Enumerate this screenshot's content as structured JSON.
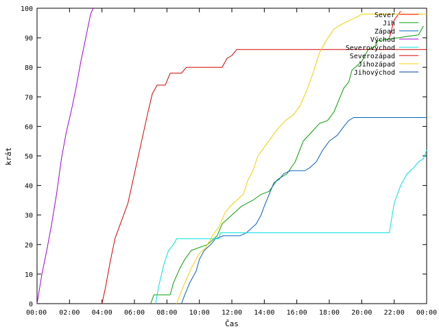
{
  "chart_data": {
    "type": "line",
    "title": "",
    "xlabel": "Čas",
    "ylabel": "krát",
    "xlim": [
      0,
      24
    ],
    "ylim": [
      0,
      100
    ],
    "x_ticks": [
      0,
      2,
      4,
      6,
      8,
      10,
      12,
      14,
      16,
      18,
      20,
      22,
      24
    ],
    "x_tick_labels": [
      "00:00",
      "02:00",
      "04:00",
      "06:00",
      "08:00",
      "10:00",
      "12:00",
      "14:00",
      "16:00",
      "18:00",
      "20:00",
      "22:00",
      "00:00"
    ],
    "y_ticks": [
      0,
      10,
      20,
      30,
      40,
      50,
      60,
      70,
      80,
      90,
      100
    ],
    "y_tick_labels": [
      "0",
      "10",
      "20",
      "30",
      "40",
      "50",
      "60",
      "70",
      "80",
      "90",
      "100"
    ],
    "grid": false,
    "legend_position": "top-right",
    "series": [
      {
        "name": "Sever",
        "color": "#ff0000",
        "points": [
          [
            21.7,
            90
          ],
          [
            22.0,
            96
          ],
          [
            22.4,
            99
          ]
        ]
      },
      {
        "name": "Jih",
        "color": "#00a000",
        "points": [
          [
            7.0,
            0
          ],
          [
            7.2,
            3
          ],
          [
            8.2,
            3
          ],
          [
            8.4,
            7
          ],
          [
            8.8,
            12
          ],
          [
            9.1,
            15
          ],
          [
            9.5,
            18
          ],
          [
            10.5,
            20
          ],
          [
            10.9,
            22
          ],
          [
            11.1,
            23
          ],
          [
            11.4,
            27
          ],
          [
            12.0,
            30
          ],
          [
            12.6,
            33
          ],
          [
            13.3,
            35
          ],
          [
            13.8,
            37
          ],
          [
            14.3,
            38
          ],
          [
            14.8,
            42
          ],
          [
            15.4,
            44
          ],
          [
            15.9,
            48
          ],
          [
            16.4,
            55
          ],
          [
            16.9,
            58
          ],
          [
            17.4,
            61
          ],
          [
            17.9,
            62
          ],
          [
            18.3,
            65
          ],
          [
            18.6,
            69
          ],
          [
            18.9,
            73
          ],
          [
            19.2,
            75
          ],
          [
            19.4,
            79
          ],
          [
            20.0,
            82
          ],
          [
            20.4,
            86
          ],
          [
            20.8,
            87
          ],
          [
            21.0,
            89
          ],
          [
            23.5,
            91
          ],
          [
            23.8,
            94
          ]
        ]
      },
      {
        "name": "Západ",
        "color": "#0060c0",
        "points": [
          [
            8.9,
            0
          ],
          [
            9.1,
            3
          ],
          [
            9.4,
            7
          ],
          [
            9.8,
            11
          ],
          [
            10.0,
            15
          ],
          [
            10.3,
            18
          ],
          [
            10.7,
            20
          ],
          [
            11.0,
            22
          ],
          [
            11.5,
            23
          ],
          [
            12.5,
            23
          ],
          [
            12.9,
            24
          ],
          [
            13.5,
            27
          ],
          [
            13.8,
            30
          ],
          [
            14.0,
            33
          ],
          [
            14.3,
            37
          ],
          [
            14.6,
            41
          ],
          [
            14.9,
            42
          ],
          [
            15.2,
            44
          ],
          [
            15.6,
            45
          ],
          [
            16.5,
            45
          ],
          [
            16.8,
            46
          ],
          [
            17.2,
            48
          ],
          [
            17.6,
            52
          ],
          [
            18.0,
            55
          ],
          [
            18.5,
            57
          ],
          [
            18.9,
            60
          ],
          [
            19.2,
            62
          ],
          [
            19.5,
            63
          ],
          [
            24.0,
            63
          ]
        ]
      },
      {
        "name": "Východ",
        "color": "#a000d0",
        "points": [
          [
            0.0,
            0
          ],
          [
            0.3,
            10
          ],
          [
            0.6,
            18
          ],
          [
            0.9,
            27
          ],
          [
            1.2,
            37
          ],
          [
            1.5,
            49
          ],
          [
            1.8,
            58
          ],
          [
            2.1,
            65
          ],
          [
            2.4,
            73
          ],
          [
            2.7,
            82
          ],
          [
            3.0,
            90
          ],
          [
            3.3,
            98
          ],
          [
            3.45,
            100
          ]
        ]
      },
      {
        "name": "Severovýchod",
        "color": "#00e0e0",
        "points": [
          [
            7.3,
            0
          ],
          [
            7.5,
            6
          ],
          [
            7.8,
            13
          ],
          [
            8.1,
            18
          ],
          [
            8.4,
            20
          ],
          [
            8.6,
            22
          ],
          [
            11.2,
            22
          ],
          [
            11.3,
            24
          ],
          [
            21.7,
            24
          ],
          [
            22.0,
            34
          ],
          [
            22.4,
            40
          ],
          [
            22.8,
            44
          ],
          [
            23.2,
            46
          ],
          [
            23.5,
            48
          ],
          [
            23.8,
            49
          ],
          [
            24.0,
            52
          ]
        ]
      },
      {
        "name": "Severozápad",
        "color": "#d00000",
        "points": [
          [
            4.0,
            0
          ],
          [
            4.2,
            5
          ],
          [
            4.5,
            14
          ],
          [
            4.8,
            22
          ],
          [
            5.0,
            25
          ],
          [
            5.2,
            28
          ],
          [
            5.6,
            34
          ],
          [
            6.0,
            44
          ],
          [
            6.4,
            54
          ],
          [
            6.8,
            64
          ],
          [
            7.1,
            71
          ],
          [
            7.4,
            74
          ],
          [
            7.9,
            74
          ],
          [
            8.2,
            78
          ],
          [
            8.9,
            78
          ],
          [
            9.2,
            80
          ],
          [
            11.4,
            80
          ],
          [
            11.7,
            83
          ],
          [
            12.0,
            84
          ],
          [
            12.3,
            86
          ],
          [
            24.0,
            86
          ]
        ]
      },
      {
        "name": "Jihozápad",
        "color": "#f0d000",
        "points": [
          [
            8.6,
            0
          ],
          [
            8.8,
            3
          ],
          [
            9.1,
            7
          ],
          [
            9.5,
            12
          ],
          [
            10.0,
            17
          ],
          [
            10.4,
            19
          ],
          [
            10.8,
            23
          ],
          [
            11.2,
            26
          ],
          [
            11.6,
            31
          ],
          [
            11.9,
            33
          ],
          [
            12.3,
            35
          ],
          [
            12.7,
            37
          ],
          [
            13.0,
            42
          ],
          [
            13.3,
            45
          ],
          [
            13.6,
            50
          ],
          [
            14.0,
            53
          ],
          [
            14.4,
            56
          ],
          [
            14.8,
            59
          ],
          [
            15.3,
            62
          ],
          [
            15.8,
            64
          ],
          [
            16.2,
            67
          ],
          [
            16.6,
            72
          ],
          [
            17.0,
            78
          ],
          [
            17.4,
            85
          ],
          [
            17.8,
            89
          ],
          [
            18.3,
            93
          ],
          [
            18.9,
            95
          ],
          [
            19.3,
            96
          ],
          [
            19.7,
            97
          ],
          [
            20.0,
            98
          ],
          [
            24.0,
            98
          ]
        ]
      },
      {
        "name": "Jihovýchod",
        "color": "#0040a0",
        "points": []
      }
    ]
  }
}
